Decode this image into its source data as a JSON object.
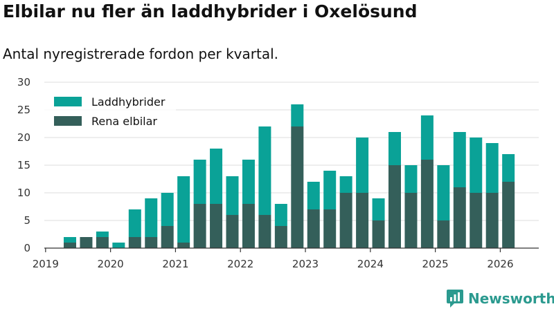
{
  "title": "Elbilar nu fler än laddhybrider i Oxelösund",
  "subtitle": "Antal nyregistrerade fordon per kvartal.",
  "brand": "Newsworthy",
  "chart_data": {
    "type": "bar",
    "stacked": true,
    "categories": [
      "2019 Q2",
      "2019 Q3",
      "2019 Q4",
      "2020 Q1",
      "2020 Q2",
      "2020 Q3",
      "2020 Q4",
      "2021 Q1",
      "2021 Q2",
      "2021 Q3",
      "2021 Q4",
      "2022 Q1",
      "2022 Q2",
      "2022 Q3",
      "2022 Q4",
      "2023 Q1",
      "2023 Q2",
      "2023 Q3",
      "2023 Q4",
      "2024 Q1",
      "2024 Q2",
      "2024 Q3",
      "2024 Q4",
      "2025 Q1",
      "2025 Q2",
      "2025 Q3",
      "2025 Q4",
      "2026 Q1"
    ],
    "series": [
      {
        "name": "Rena elbilar",
        "color": "#345f5a",
        "values": [
          1,
          2,
          2,
          0,
          2,
          2,
          4,
          1,
          8,
          8,
          6,
          8,
          6,
          4,
          22,
          7,
          7,
          10,
          10,
          5,
          15,
          10,
          16,
          5,
          11,
          10,
          10,
          12
        ]
      },
      {
        "name": "Laddhybrider",
        "color": "#0aa297",
        "values": [
          1,
          0,
          1,
          1,
          5,
          7,
          6,
          12,
          8,
          10,
          7,
          8,
          16,
          4,
          4,
          5,
          7,
          3,
          10,
          4,
          6,
          5,
          8,
          10,
          10,
          10,
          9,
          5
        ]
      }
    ],
    "legend": [
      "Laddhybrider",
      "Rena elbilar"
    ],
    "legend_position": "top-left",
    "ylim": [
      0,
      30
    ],
    "yticks": [
      0,
      5,
      10,
      15,
      20,
      25,
      30
    ],
    "xtick_labels": [
      "2019",
      "2020",
      "2021",
      "2022",
      "2023",
      "2024",
      "2025",
      "2026"
    ],
    "xtick_values": [
      2019,
      2020,
      2021,
      2022,
      2023,
      2024,
      2025,
      2026
    ],
    "grid": true
  }
}
